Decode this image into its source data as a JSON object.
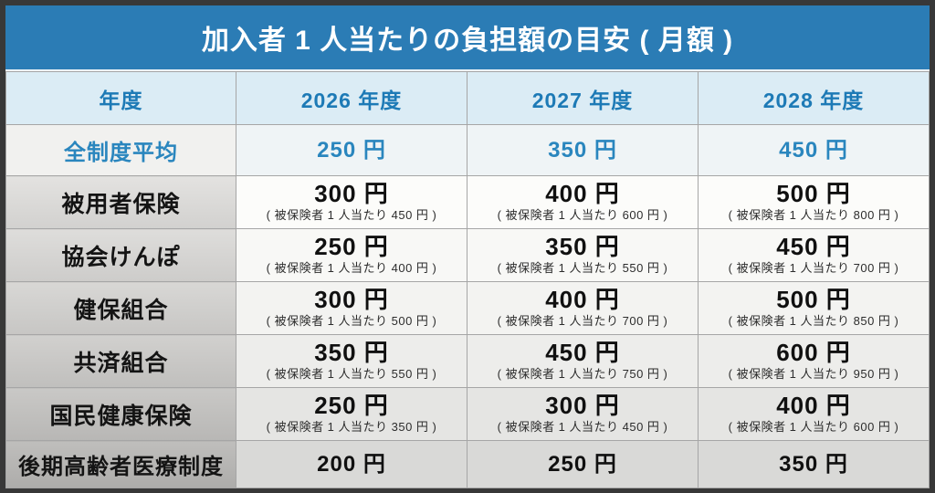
{
  "title": "加入者 1 人当たりの負担額の目安 ( 月額 )",
  "colors": {
    "title_bar": "#2b7cb5",
    "header_bg": "#dbecf5",
    "accent_blue_text": "#2a86be",
    "frame": "#383838"
  },
  "table": {
    "header": {
      "col0": "年度",
      "cols": [
        "2026 年度",
        "2027 年度",
        "2028 年度"
      ]
    },
    "rows": [
      {
        "label": "全制度平均",
        "values": [
          {
            "main": "250 円"
          },
          {
            "main": "350 円"
          },
          {
            "main": "450 円"
          }
        ]
      },
      {
        "label": "被用者保険",
        "values": [
          {
            "main": "300 円",
            "note": "( 被保険者 1 人当たり 450 円 )"
          },
          {
            "main": "400 円",
            "note": "( 被保険者 1 人当たり 600 円 )"
          },
          {
            "main": "500 円",
            "note": "( 被保険者 1 人当たり 800 円 )"
          }
        ]
      },
      {
        "label": "協会けんぽ",
        "values": [
          {
            "main": "250 円",
            "note": "( 被保険者 1 人当たり 400 円 )"
          },
          {
            "main": "350 円",
            "note": "( 被保険者 1 人当たり 550 円 )"
          },
          {
            "main": "450 円",
            "note": "( 被保険者 1 人当たり 700 円 )"
          }
        ]
      },
      {
        "label": "健保組合",
        "values": [
          {
            "main": "300 円",
            "note": "( 被保険者 1 人当たり 500 円 )"
          },
          {
            "main": "400 円",
            "note": "( 被保険者 1 人当たり 700 円 )"
          },
          {
            "main": "500 円",
            "note": "( 被保険者 1 人当たり 850 円 )"
          }
        ]
      },
      {
        "label": "共済組合",
        "values": [
          {
            "main": "350 円",
            "note": "( 被保険者 1 人当たり 550 円 )"
          },
          {
            "main": "450 円",
            "note": "( 被保険者 1 人当たり 750 円 )"
          },
          {
            "main": "600 円",
            "note": "( 被保険者 1 人当たり 950 円 )"
          }
        ]
      },
      {
        "label": "国民健康保険",
        "values": [
          {
            "main": "250 円",
            "note": "( 被保険者 1 人当たり 350 円 )"
          },
          {
            "main": "300 円",
            "note": "( 被保険者 1 人当たり 450 円 )"
          },
          {
            "main": "400 円",
            "note": "( 被保険者 1 人当たり 600 円 )"
          }
        ]
      },
      {
        "label": "後期高齢者医療制度",
        "values": [
          {
            "main": "200 円"
          },
          {
            "main": "250 円"
          },
          {
            "main": "350 円"
          }
        ]
      }
    ]
  },
  "chart_data": {
    "type": "table",
    "title": "加入者 1 人当たりの負担額の目安 ( 月額 )",
    "columns": [
      "年度",
      "2026 年度",
      "2027 年度",
      "2028 年度"
    ],
    "unit": "円/月",
    "rows": [
      {
        "category": "全制度平均",
        "values_yen": [
          250,
          350,
          450
        ]
      },
      {
        "category": "被用者保険",
        "values_yen": [
          300,
          400,
          500
        ],
        "per_insured_yen": [
          450,
          600,
          800
        ]
      },
      {
        "category": "協会けんぽ",
        "values_yen": [
          250,
          350,
          450
        ],
        "per_insured_yen": [
          400,
          550,
          700
        ]
      },
      {
        "category": "健保組合",
        "values_yen": [
          300,
          400,
          500
        ],
        "per_insured_yen": [
          500,
          700,
          850
        ]
      },
      {
        "category": "共済組合",
        "values_yen": [
          350,
          450,
          600
        ],
        "per_insured_yen": [
          550,
          750,
          950
        ]
      },
      {
        "category": "国民健康保険",
        "values_yen": [
          250,
          300,
          400
        ],
        "per_insured_yen": [
          350,
          450,
          600
        ]
      },
      {
        "category": "後期高齢者医療制度",
        "values_yen": [
          200,
          250,
          350
        ]
      }
    ]
  }
}
